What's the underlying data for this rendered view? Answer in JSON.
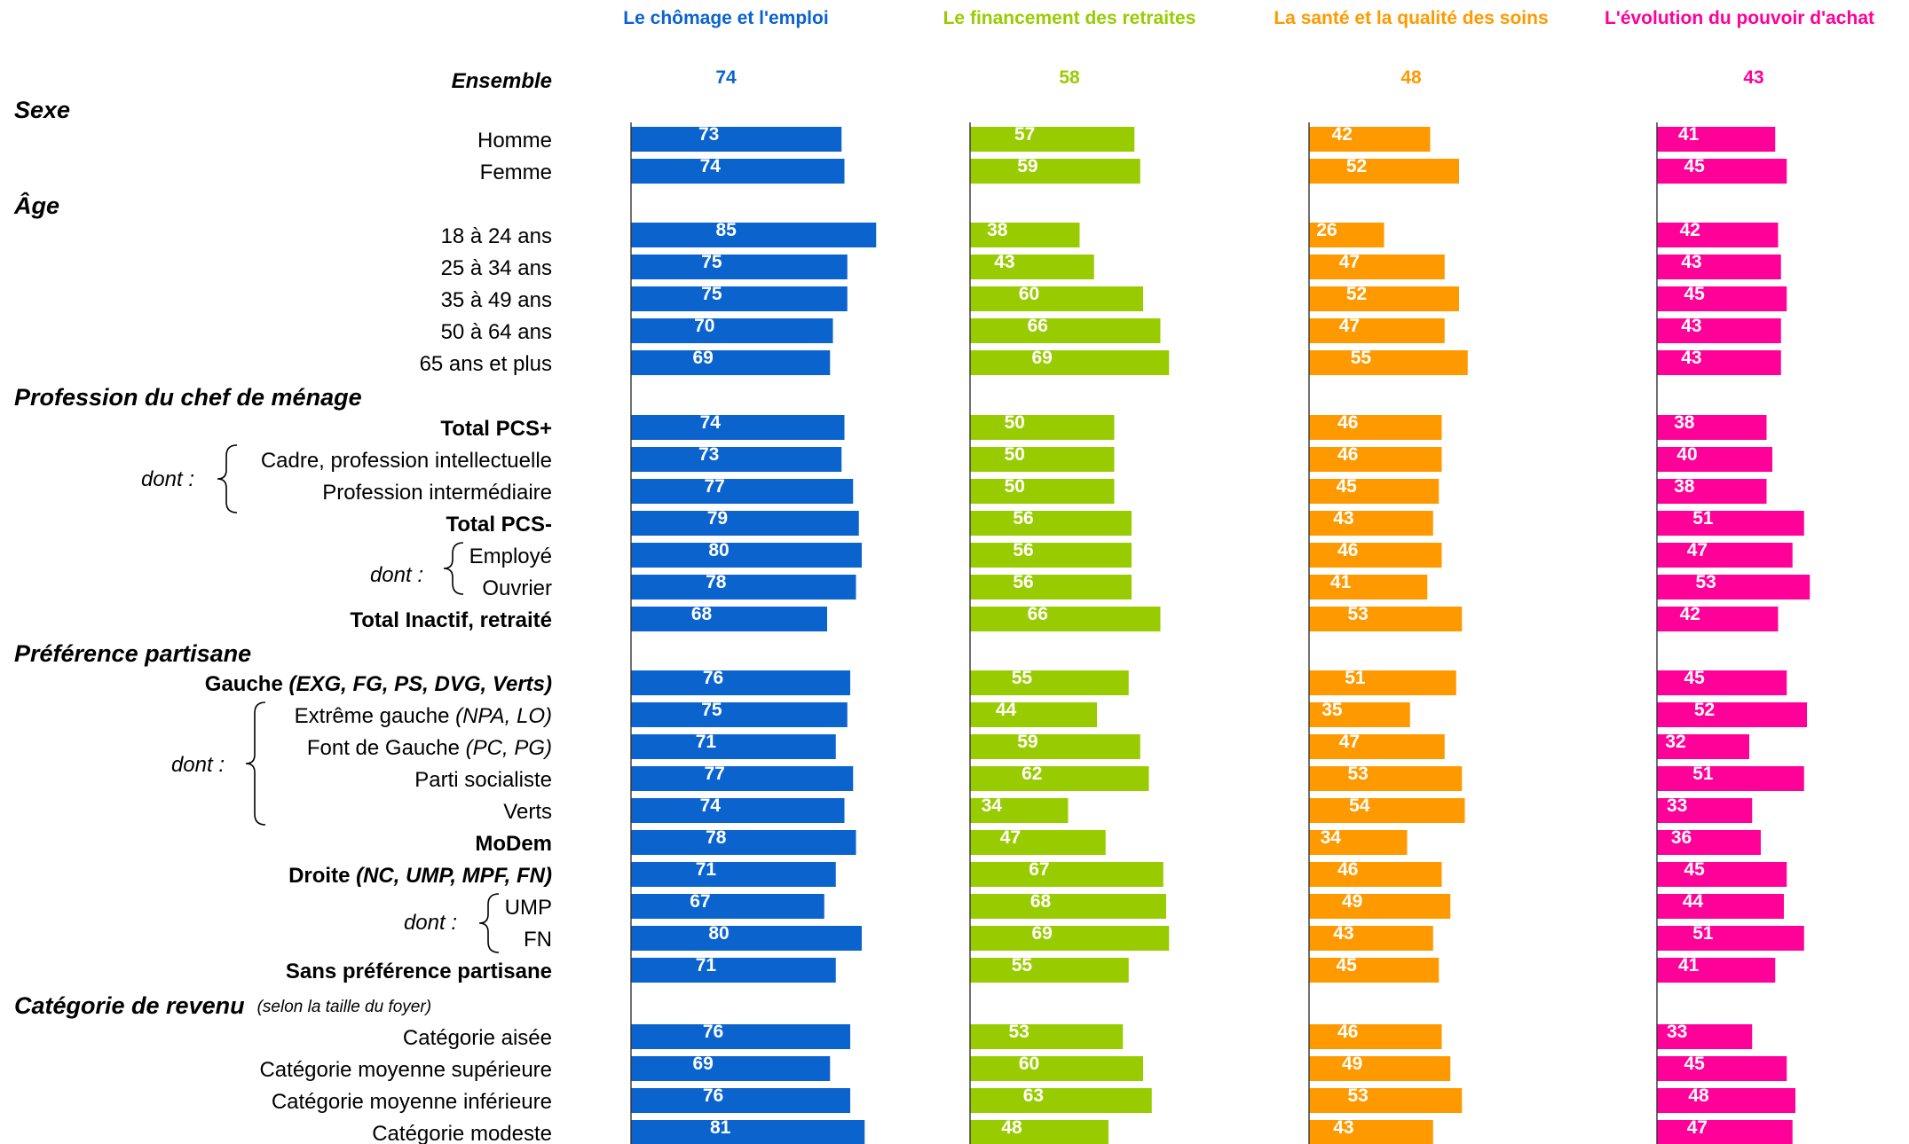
{
  "chart_data": {
    "type": "bar",
    "orientation": "horizontal",
    "panels": 4,
    "xlim": [
      0,
      100
    ],
    "grid": false,
    "legend": "none",
    "ensemble_label": "Ensemble",
    "series": [
      {
        "name": "Le chômage et l'emploi",
        "color": "#0B63CE",
        "ensemble": 74,
        "values": [
          73,
          74,
          85,
          75,
          75,
          70,
          69,
          74,
          73,
          77,
          79,
          80,
          78,
          68,
          76,
          75,
          71,
          77,
          74,
          78,
          71,
          67,
          80,
          71,
          76,
          69,
          76,
          81
        ]
      },
      {
        "name": "Le financement des retraites",
        "color": "#99CC00",
        "ensemble": 58,
        "values": [
          57,
          59,
          38,
          43,
          60,
          66,
          69,
          50,
          50,
          50,
          56,
          56,
          56,
          66,
          55,
          44,
          59,
          62,
          34,
          47,
          67,
          68,
          69,
          55,
          53,
          60,
          63,
          48
        ]
      },
      {
        "name": "La santé et la qualité des soins",
        "color": "#FF9900",
        "ensemble": 48,
        "values": [
          42,
          52,
          26,
          47,
          52,
          47,
          55,
          46,
          46,
          45,
          43,
          46,
          41,
          53,
          51,
          35,
          47,
          53,
          54,
          34,
          46,
          49,
          43,
          45,
          46,
          49,
          53,
          43
        ]
      },
      {
        "name": "L'évolution du pouvoir d'achat",
        "color": "#FF0099",
        "ensemble": 43,
        "values": [
          41,
          45,
          42,
          43,
          45,
          43,
          43,
          38,
          40,
          38,
          51,
          47,
          53,
          42,
          45,
          52,
          32,
          51,
          33,
          36,
          45,
          44,
          51,
          41,
          33,
          45,
          48,
          47
        ]
      }
    ],
    "sections": [
      {
        "title": "Sexe",
        "note": ""
      },
      {
        "title": "Âge",
        "note": ""
      },
      {
        "title": "Profession du chef de ménage",
        "note": ""
      },
      {
        "title": "Préférence partisane",
        "note": ""
      },
      {
        "title": "Catégorie de revenu",
        "note": "(selon la taille du foyer)"
      }
    ],
    "categories": [
      {
        "label": "Homme"
      },
      {
        "label": "Femme"
      },
      {
        "label": "18 à 24 ans"
      },
      {
        "label": "25 à 34 ans"
      },
      {
        "label": "35 à 49 ans"
      },
      {
        "label": "50 à 64 ans"
      },
      {
        "label": "65 ans et plus"
      },
      {
        "label": "Total PCS+",
        "bold": true
      },
      {
        "label": "Cadre, profession intellectuelle"
      },
      {
        "label": "Profession intermédiaire"
      },
      {
        "label": "Total PCS-",
        "bold": true
      },
      {
        "label": "Employé"
      },
      {
        "label": "Ouvrier"
      },
      {
        "label": "Total Inactif, retraité",
        "bold": true
      },
      {
        "label": "Gauche",
        "suffix": " (EXG, FG, PS, DVG, Verts)",
        "bold": true
      },
      {
        "label": "Extrême gauche",
        "suffix": " (NPA, LO)"
      },
      {
        "label": "Font de Gauche",
        "suffix": " (PC, PG)"
      },
      {
        "label": "Parti socialiste"
      },
      {
        "label": "Verts"
      },
      {
        "label": "MoDem",
        "bold": true
      },
      {
        "label": "Droite",
        "suffix": " (NC, UMP, MPF, FN)",
        "bold": true
      },
      {
        "label": "UMP"
      },
      {
        "label": "FN"
      },
      {
        "label": "Sans préférence partisane",
        "bold": true
      },
      {
        "label": "Catégorie aisée"
      },
      {
        "label": "Catégorie moyenne supérieure"
      },
      {
        "label": "Catégorie moyenne inférieure"
      },
      {
        "label": "Catégorie modeste"
      }
    ],
    "dont_label": "dont :"
  }
}
